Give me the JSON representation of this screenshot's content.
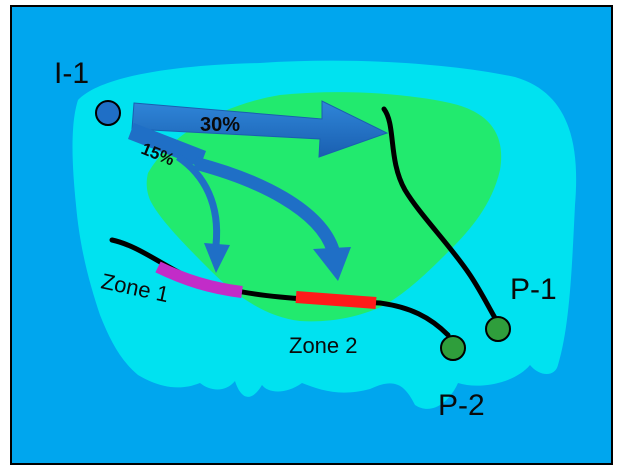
{
  "labels": {
    "injector": "I-1",
    "producer_1": "P-1",
    "producer_2": "P-2",
    "zone_1": "Zone 1",
    "zone_2": "Zone 2"
  },
  "flows": {
    "to_p1": "30%",
    "to_zones": "15%"
  },
  "colors": {
    "frame_background": "#00a6ee",
    "outer_region": "#00e2f0",
    "inner_region": "#22ea6e",
    "flow_arrow": "#1f6fc6",
    "well_injector": "#1f6fc6",
    "well_producer": "#2f9e3c",
    "zone_1_marker": "#c22cc8",
    "zone_2_marker": "#ff1a1a",
    "well_path": "#000000"
  }
}
